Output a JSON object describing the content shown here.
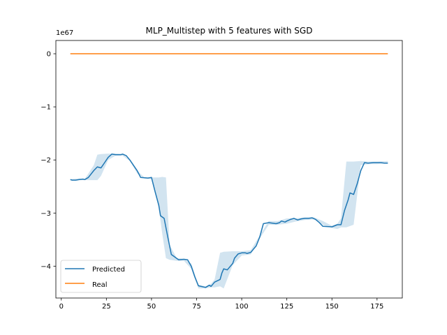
{
  "chart_data": {
    "type": "line",
    "title": "MLP_Multistep with 5 features with SGD",
    "offset_text": "1e67",
    "xlabel": "",
    "ylabel": "",
    "xlim": [
      -3,
      189
    ],
    "ylim": [
      -4.6,
      0.25
    ],
    "x_ticks": [
      0,
      25,
      50,
      75,
      100,
      125,
      150,
      175
    ],
    "x_tick_labels": [
      "0",
      "25",
      "50",
      "75",
      "100",
      "125",
      "150",
      "175"
    ],
    "y_ticks": [
      0,
      -1,
      -2,
      -3,
      -4
    ],
    "y_tick_labels": [
      "0",
      "−1",
      "−2",
      "−3",
      "−4"
    ],
    "grid": false,
    "legend_position": "lower-left",
    "colors": {
      "predicted": "#1f77b4",
      "real": "#ff7f0e",
      "band": "#1f77b4"
    },
    "series": [
      {
        "name": "Predicted",
        "x": [
          5,
          6,
          8,
          10,
          12,
          13,
          15,
          18,
          20,
          22,
          24,
          26,
          28,
          30,
          33,
          34,
          36,
          38,
          40,
          42,
          44,
          48,
          50,
          52,
          54,
          55,
          57,
          59,
          61,
          65,
          68,
          70,
          72,
          74,
          76,
          80,
          82,
          83,
          85,
          88,
          89,
          90,
          92,
          95,
          96,
          98,
          100,
          102,
          103,
          105,
          108,
          110,
          112,
          115,
          117,
          119,
          121,
          122,
          124,
          125,
          127,
          129,
          131,
          133,
          135,
          137,
          139,
          141,
          143,
          145,
          150,
          153,
          155,
          157,
          159,
          160,
          162,
          164,
          166,
          168,
          170,
          173,
          175,
          177,
          179,
          181
        ],
        "values": [
          -2.37,
          -2.38,
          -2.38,
          -2.37,
          -2.36,
          -2.37,
          -2.33,
          -2.2,
          -2.13,
          -2.15,
          -2.05,
          -1.95,
          -1.89,
          -1.9,
          -1.9,
          -1.89,
          -1.92,
          -2.0,
          -2.1,
          -2.2,
          -2.33,
          -2.34,
          -2.33,
          -2.6,
          -2.85,
          -3.05,
          -3.1,
          -3.45,
          -3.78,
          -3.88,
          -3.87,
          -3.88,
          -4.0,
          -4.2,
          -4.37,
          -4.4,
          -4.36,
          -4.38,
          -4.3,
          -4.25,
          -4.13,
          -4.05,
          -4.07,
          -3.95,
          -3.85,
          -3.77,
          -3.75,
          -3.75,
          -3.76,
          -3.74,
          -3.62,
          -3.45,
          -3.2,
          -3.18,
          -3.19,
          -3.2,
          -3.18,
          -3.15,
          -3.17,
          -3.15,
          -3.12,
          -3.1,
          -3.13,
          -3.11,
          -3.1,
          -3.1,
          -3.09,
          -3.12,
          -3.18,
          -3.25,
          -3.26,
          -3.22,
          -3.22,
          -2.95,
          -2.75,
          -2.62,
          -2.65,
          -2.45,
          -2.2,
          -2.05,
          -2.06,
          -2.05,
          -2.05,
          -2.05,
          -2.06,
          -2.06
        ]
      },
      {
        "name": "Real",
        "x": [
          5,
          181
        ],
        "values": [
          0,
          0
        ]
      }
    ],
    "band": {
      "x": [
        5,
        10,
        13,
        18,
        20,
        22,
        26,
        30,
        34,
        38,
        42,
        46,
        50,
        54,
        56,
        58,
        60,
        64,
        68,
        72,
        76,
        80,
        83,
        85,
        88,
        90,
        95,
        100,
        105,
        110,
        115,
        120,
        125,
        130,
        135,
        140,
        145,
        150,
        153,
        155,
        158,
        162,
        166,
        170,
        175,
        181
      ],
      "upper": [
        -2.36,
        -2.35,
        -2.36,
        -2.1,
        -1.9,
        -1.89,
        -1.88,
        -1.88,
        -1.89,
        -2.0,
        -2.2,
        -2.33,
        -2.33,
        -2.33,
        -2.32,
        -2.33,
        -3.6,
        -3.85,
        -3.86,
        -3.95,
        -4.35,
        -4.38,
        -4.33,
        -4.25,
        -3.75,
        -3.73,
        -3.72,
        -3.72,
        -3.7,
        -3.42,
        -3.15,
        -3.15,
        -3.1,
        -3.1,
        -3.08,
        -3.08,
        -3.15,
        -3.24,
        -3.2,
        -3.1,
        -2.03,
        -2.03,
        -2.02,
        -2.03,
        -2.03,
        -2.02
      ],
      "lower": [
        -2.38,
        -2.38,
        -2.38,
        -2.38,
        -2.38,
        -2.3,
        -2.0,
        -1.92,
        -1.92,
        -2.02,
        -2.25,
        -2.35,
        -2.36,
        -2.9,
        -3.4,
        -3.85,
        -3.88,
        -3.9,
        -3.9,
        -4.05,
        -4.42,
        -4.42,
        -4.4,
        -4.4,
        -4.38,
        -4.42,
        -3.98,
        -3.8,
        -3.78,
        -3.48,
        -3.22,
        -3.22,
        -3.2,
        -3.16,
        -3.13,
        -3.12,
        -3.22,
        -3.28,
        -3.3,
        -3.27,
        -3.27,
        -3.22,
        -2.1,
        -2.08,
        -2.08,
        -2.06
      ]
    }
  }
}
